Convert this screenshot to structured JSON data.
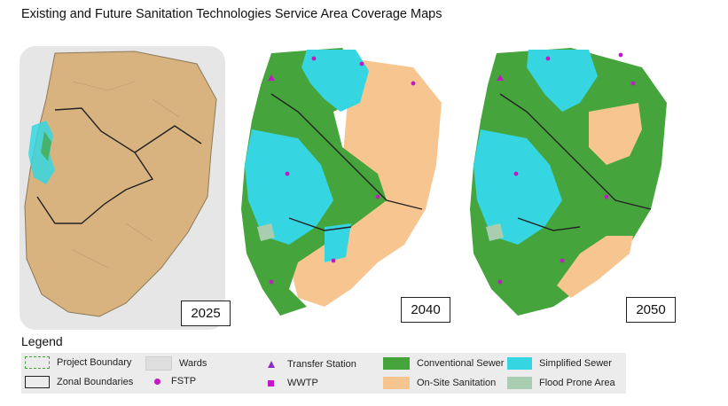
{
  "title": "Existing and Future Sanitation Technologies Service Area Coverage Maps",
  "colors": {
    "conventional_sewer": "#45a53c",
    "onsite_sanitation": "#f7c690",
    "simplified_sewer": "#35d6e1",
    "flood_prone": "#a9cdb0",
    "existing_area": "#d8b37f",
    "marker": "#c21ac2"
  },
  "maps": [
    {
      "year": "2025"
    },
    {
      "year": "2040"
    },
    {
      "year": "2050"
    }
  ],
  "legend": {
    "title": "Legend",
    "items": {
      "project_boundary": "Project Boundary",
      "zonal_boundaries": "Zonal Boundaries",
      "wards": "Wards",
      "fstp": "FSTP",
      "transfer_station": "Transfer Station",
      "wwtp": "WWTP",
      "conventional_sewer": "Conventional Sewer",
      "onsite_sanitation": "On-Site Sanitation",
      "simplified_sewer": "Simplified Sewer",
      "flood_prone_area": "Flood Prone Area"
    }
  }
}
